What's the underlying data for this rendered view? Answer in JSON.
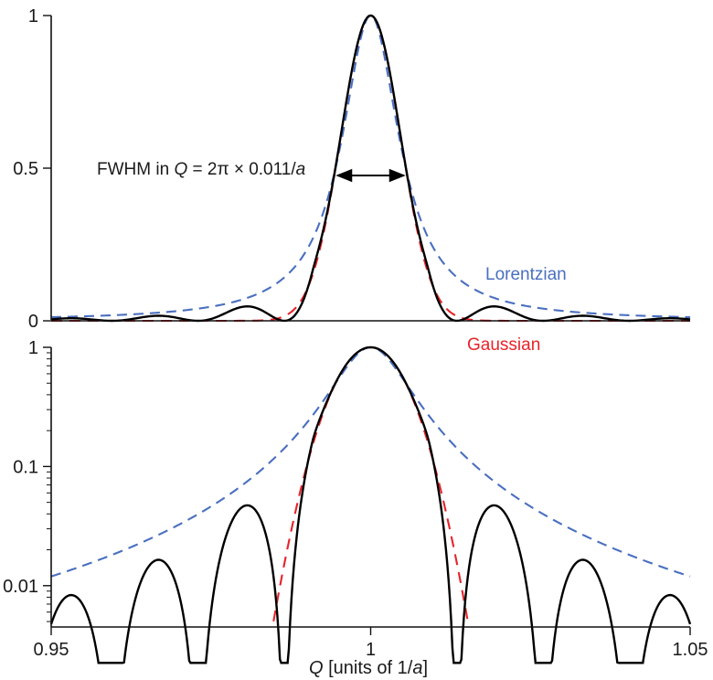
{
  "chart_data": [
    {
      "type": "line",
      "scale": "linear",
      "xlim": [
        0.95,
        1.05
      ],
      "ylim": [
        0,
        1
      ],
      "yticks": [
        {
          "value": 0,
          "label": "0"
        },
        {
          "value": 0.5,
          "label": "0.5"
        },
        {
          "value": 1,
          "label": "1"
        }
      ],
      "annotations": {
        "fwhm_prefix": "FWHM in ",
        "fwhm_var": "Q",
        "fwhm_mid": " = 2π × 0.011/",
        "fwhm_a": "a",
        "fwhm_x_range": [
          0.9945,
          1.0055
        ],
        "fwhm_y": 0.5,
        "lorentzian_label": "Lorentzian"
      },
      "series": [
        {
          "name": "Lorentzian",
          "role": "lorentzian",
          "color": "#4a6fc0",
          "dashed": true
        },
        {
          "name": "Gaussian",
          "role": "gaussian",
          "color": "#e8232a",
          "dashed": true
        },
        {
          "role": "measured",
          "color": "#000000",
          "dashed": false
        }
      ]
    },
    {
      "type": "line",
      "scale": "log",
      "xlim": [
        0.95,
        1.05
      ],
      "ylim": [
        0.0045,
        1
      ],
      "yticks": [
        {
          "value": 0.01,
          "label": "0.01"
        },
        {
          "value": 0.1,
          "label": "0.1"
        },
        {
          "value": 1,
          "label": "1"
        }
      ],
      "xticks": [
        {
          "value": 0.95,
          "label": "0.95"
        },
        {
          "value": 1,
          "label": "1"
        },
        {
          "value": 1.05,
          "label": "1.05"
        }
      ],
      "xlabel_var": "Q",
      "xlabel_rest": " [units of 1/",
      "xlabel_a": "a",
      "xlabel_end": "]",
      "annotations": {
        "gaussian_label": "Gaussian"
      },
      "series": [
        {
          "name": "Lorentzian",
          "role": "lorentzian",
          "color": "#4a6fc0",
          "dashed": true
        },
        {
          "name": "Gaussian",
          "role": "gaussian",
          "color": "#e8232a",
          "dashed": true
        },
        {
          "role": "measured",
          "color": "#000000",
          "dashed": false
        }
      ]
    }
  ]
}
